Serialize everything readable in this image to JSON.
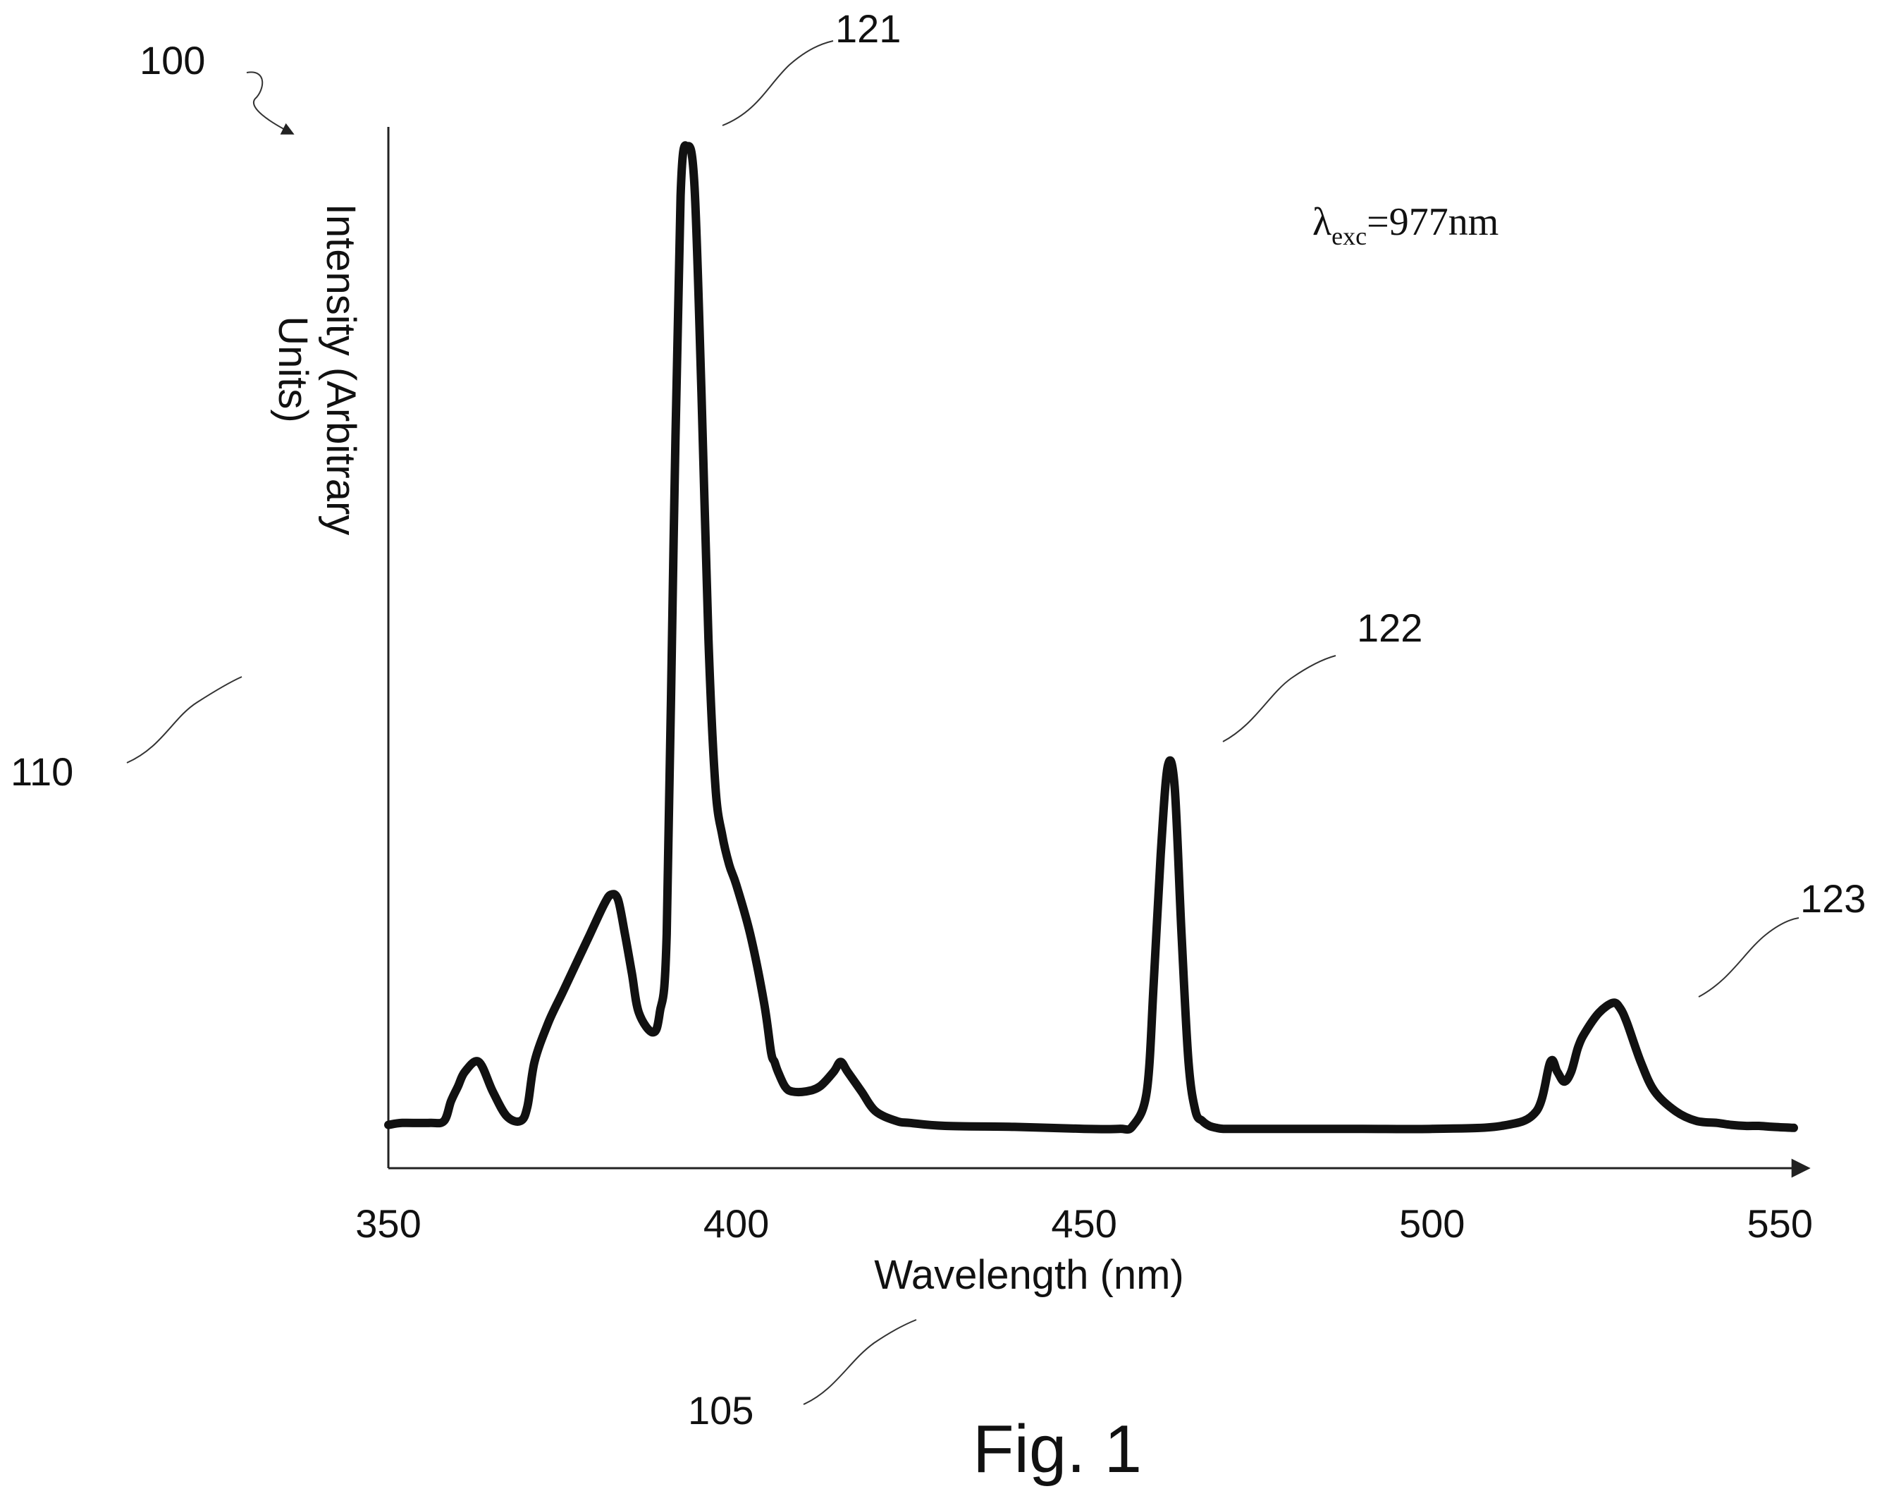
{
  "figure": {
    "caption": "Fig. 1",
    "ref_numerals": {
      "figure": "100",
      "x_axis": "105",
      "y_axis": "110",
      "peak_1": "121",
      "peak_2": "122",
      "peak_3": "123"
    },
    "annotation": {
      "symbol": "λ",
      "subscript": "exc",
      "value": "=977nm"
    }
  },
  "chart_data": {
    "type": "line",
    "title": "",
    "xlabel": "Wavelength (nm)",
    "ylabel_lines": [
      "Intensity (Arbitrary",
      "Units)"
    ],
    "xlim": [
      350,
      552
    ],
    "ylim": [
      0,
      1.05
    ],
    "x_ticks": [
      350,
      400,
      450,
      500,
      550
    ],
    "x_tick_labels": [
      "350",
      "400",
      "450",
      "500",
      "550"
    ],
    "y_ticks_shown": false,
    "grid": false,
    "legend": "none",
    "line_color": "#111111",
    "series": [
      {
        "values_x": [
          350,
          352,
          356,
          358,
          359,
          360,
          361,
          363,
          365,
          367,
          369,
          370,
          371,
          373,
          375,
          377,
          379,
          381,
          382,
          383,
          384,
          385,
          386,
          388,
          389,
          390,
          391,
          392,
          393,
          394,
          395,
          396,
          397,
          398,
          399,
          400,
          402,
          404,
          405,
          405.5,
          406,
          407,
          408,
          410,
          412,
          414,
          415,
          416,
          418,
          420,
          423,
          425,
          430,
          440,
          450,
          455,
          457,
          459,
          460,
          461,
          462,
          463,
          464,
          465,
          466,
          467,
          468,
          469,
          470,
          472,
          475,
          480,
          490,
          500,
          510,
          515,
          517,
          518,
          519,
          520,
          521,
          522,
          524,
          526,
          527,
          528,
          530,
          532,
          535,
          538,
          541,
          543,
          545,
          547,
          549,
          552
        ],
        "values_y": [
          0.006,
          0.008,
          0.008,
          0.01,
          0.03,
          0.045,
          0.06,
          0.07,
          0.04,
          0.015,
          0.01,
          0.025,
          0.07,
          0.11,
          0.14,
          0.17,
          0.2,
          0.23,
          0.24,
          0.235,
          0.2,
          0.16,
          0.12,
          0.1,
          0.12,
          0.2,
          0.6,
          0.95,
          1.0,
          0.96,
          0.75,
          0.5,
          0.35,
          0.3,
          0.27,
          0.25,
          0.2,
          0.13,
          0.08,
          0.07,
          0.06,
          0.045,
          0.04,
          0.04,
          0.045,
          0.06,
          0.07,
          0.06,
          0.04,
          0.02,
          0.01,
          0.008,
          0.005,
          0.004,
          0.002,
          0.002,
          0.005,
          0.04,
          0.15,
          0.28,
          0.37,
          0.35,
          0.2,
          0.07,
          0.02,
          0.01,
          0.005,
          0.003,
          0.002,
          0.002,
          0.002,
          0.002,
          0.002,
          0.002,
          0.005,
          0.02,
          0.07,
          0.06,
          0.05,
          0.06,
          0.085,
          0.1,
          0.12,
          0.13,
          0.125,
          0.11,
          0.07,
          0.04,
          0.02,
          0.01,
          0.008,
          0.006,
          0.005,
          0.005,
          0.004,
          0.003
        ]
      }
    ]
  }
}
